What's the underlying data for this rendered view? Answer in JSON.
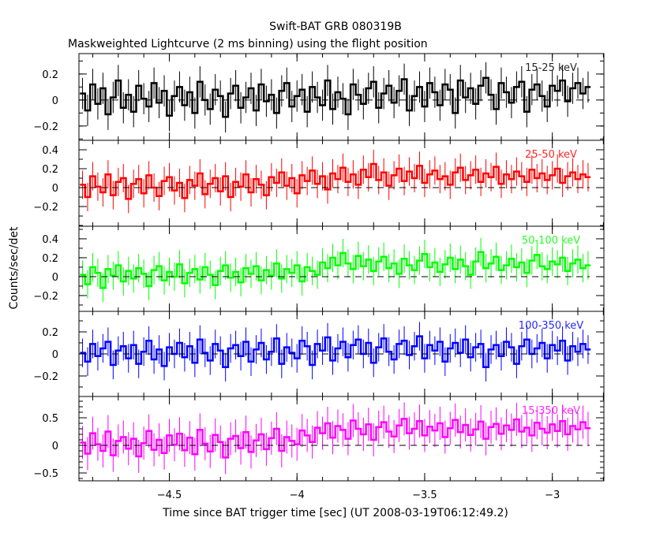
{
  "chart_data": {
    "type": "line",
    "title": "Swift-BAT GRB 080319B",
    "subtitle": "Maskweighted Lightcurve (2 ms binning) using the flight position",
    "xlabel": "Time since BAT trigger time [sec] (UT 2008-03-19T06:12:49.2)",
    "ylabel": "Counts/sec/det",
    "xlim": [
      -4.854,
      -2.798
    ],
    "x_start": -4.85,
    "x_step": 0.02,
    "x_ticks": [
      -4.5,
      -4,
      -3.5,
      -3
    ],
    "x_tick_labels": [
      "-4.5",
      "-4",
      "-3.5",
      "-3"
    ],
    "grid": false,
    "panels": [
      {
        "name": "15-25 keV",
        "color": "#000000",
        "err": 0.12,
        "ylim": [
          -0.31,
          0.357
        ],
        "y_ticks": [
          0.2,
          0,
          -0.2
        ],
        "y_tick_labels": [
          "0.2",
          "0",
          "−0.2"
        ],
        "values": [
          0.05,
          -0.08,
          0.12,
          -0.03,
          0.09,
          -0.11,
          0.02,
          0.15,
          -0.06,
          0.04,
          -0.09,
          0.11,
          0.01,
          -0.05,
          0.13,
          -0.02,
          0.07,
          -0.12,
          0.03,
          0.1,
          -0.04,
          0.06,
          -0.1,
          0.14,
          0.0,
          -0.07,
          0.08,
          0.03,
          -0.13,
          0.05,
          0.11,
          -0.06,
          0.02,
          0.09,
          -0.08,
          0.12,
          -0.01,
          0.04,
          -0.1,
          0.07,
          0.13,
          -0.05,
          0.03,
          0.08,
          -0.09,
          0.1,
          0.02,
          -0.04,
          0.15,
          -0.07,
          0.06,
          0.01,
          -0.11,
          0.12,
          0.04,
          -0.03,
          0.09,
          0.14,
          -0.06,
          0.05,
          0.11,
          -0.02,
          0.07,
          0.16,
          -0.08,
          0.03,
          0.1,
          -0.05,
          0.13,
          0.06,
          -0.04,
          0.12,
          0.08,
          -0.1,
          0.15,
          0.02,
          0.09,
          -0.03,
          0.11,
          0.17,
          0.04,
          -0.07,
          0.13,
          0.06,
          -0.02,
          0.1,
          0.14,
          -0.09,
          0.08,
          0.12,
          0.03,
          -0.05,
          0.11,
          0.07,
          0.15,
          -0.01,
          0.09,
          0.13,
          0.05,
          0.1
        ]
      },
      {
        "name": "25-50 keV",
        "color": "#ff0000",
        "err": 0.15,
        "ylim": [
          -0.408,
          0.5
        ],
        "y_ticks": [
          0.4,
          0.2,
          0,
          -0.2
        ],
        "y_tick_labels": [
          "0.4",
          "0.2",
          "0",
          "−0.2"
        ],
        "values": [
          0.03,
          -0.1,
          0.12,
          0.01,
          -0.05,
          0.14,
          -0.08,
          0.06,
          0.1,
          -0.12,
          0.04,
          0.09,
          -0.06,
          0.13,
          0.0,
          -0.09,
          0.07,
          0.11,
          -0.03,
          0.05,
          -0.11,
          0.08,
          0.02,
          0.15,
          -0.07,
          0.04,
          0.1,
          -0.04,
          0.12,
          -0.1,
          0.06,
          0.01,
          0.14,
          -0.05,
          0.09,
          0.03,
          -0.08,
          0.11,
          0.05,
          0.16,
          0.02,
          0.1,
          -0.06,
          0.13,
          0.07,
          0.18,
          0.04,
          0.12,
          -0.02,
          0.15,
          0.09,
          0.21,
          0.06,
          0.14,
          0.03,
          0.19,
          0.11,
          0.25,
          0.08,
          0.16,
          0.02,
          0.13,
          0.2,
          0.07,
          0.17,
          0.1,
          0.23,
          0.05,
          0.14,
          0.18,
          0.09,
          0.12,
          0.03,
          0.16,
          0.21,
          0.08,
          0.13,
          0.19,
          0.06,
          0.15,
          0.11,
          0.22,
          0.04,
          0.14,
          0.09,
          0.17,
          0.12,
          0.06,
          0.19,
          0.1,
          0.15,
          0.08,
          0.13,
          0.2,
          0.05,
          0.12,
          0.16,
          0.09,
          0.14,
          0.11
        ]
      },
      {
        "name": "50-100 keV",
        "color": "#00ff00",
        "err": 0.15,
        "ylim": [
          -0.367,
          0.533
        ],
        "y_ticks": [
          0.4,
          0.2,
          0,
          -0.2
        ],
        "y_tick_labels": [
          "0.4",
          "0.2",
          "0",
          "−0.2"
        ],
        "values": [
          0.02,
          -0.08,
          0.1,
          0.04,
          -0.12,
          0.08,
          0.01,
          0.12,
          -0.05,
          0.06,
          -0.02,
          0.09,
          0.03,
          -0.1,
          0.07,
          0.11,
          -0.04,
          0.05,
          0.0,
          0.13,
          -0.07,
          0.04,
          0.08,
          -0.03,
          0.1,
          0.02,
          -0.09,
          0.06,
          0.12,
          -0.01,
          0.05,
          -0.06,
          0.09,
          0.03,
          0.11,
          -0.04,
          0.07,
          0.01,
          0.14,
          -0.02,
          0.08,
          0.04,
          0.12,
          -0.05,
          0.1,
          0.06,
          0.02,
          0.15,
          0.09,
          0.2,
          0.12,
          0.25,
          0.14,
          0.08,
          0.22,
          0.11,
          0.18,
          0.06,
          0.16,
          0.21,
          0.09,
          0.14,
          0.03,
          0.19,
          0.12,
          0.07,
          0.17,
          0.24,
          0.1,
          0.15,
          0.05,
          0.13,
          0.2,
          0.08,
          0.18,
          0.11,
          0.02,
          0.16,
          0.26,
          0.09,
          0.14,
          0.21,
          0.07,
          0.12,
          0.19,
          0.1,
          0.15,
          0.04,
          0.17,
          0.23,
          0.11,
          0.08,
          0.16,
          0.13,
          0.2,
          0.06,
          0.14,
          0.18,
          0.09,
          0.12
        ]
      },
      {
        "name": "100-350 keV",
        "color": "#0000ff",
        "err": 0.13,
        "ylim": [
          -0.386,
          0.386
        ],
        "y_ticks": [
          0.2,
          0,
          -0.2
        ],
        "y_tick_labels": [
          "0.2",
          "0",
          "−0.2"
        ],
        "values": [
          0.01,
          -0.07,
          0.09,
          -0.02,
          0.05,
          0.11,
          -0.1,
          0.03,
          0.07,
          -0.04,
          0.08,
          -0.09,
          0.02,
          0.12,
          -0.05,
          0.04,
          -0.11,
          0.06,
          0.0,
          0.1,
          -0.03,
          0.07,
          -0.08,
          0.13,
          0.01,
          -0.06,
          0.09,
          0.03,
          -0.12,
          0.05,
          0.08,
          -0.02,
          0.11,
          -0.07,
          0.04,
          0.1,
          -0.05,
          0.02,
          0.14,
          -0.09,
          0.06,
          0.01,
          -0.04,
          0.12,
          0.07,
          -0.1,
          0.09,
          0.03,
          0.15,
          -0.06,
          0.05,
          0.11,
          -0.03,
          0.08,
          0.13,
          0.0,
          0.1,
          -0.08,
          0.06,
          0.14,
          0.02,
          -0.05,
          0.09,
          0.12,
          -0.01,
          0.07,
          0.16,
          -0.04,
          0.08,
          0.03,
          0.11,
          -0.07,
          0.05,
          0.1,
          0.01,
          0.13,
          -0.03,
          0.06,
          0.09,
          -0.12,
          0.04,
          0.08,
          -0.02,
          0.11,
          0.06,
          -0.09,
          0.07,
          0.13,
          0.0,
          0.05,
          0.1,
          -0.04,
          0.08,
          0.03,
          0.12,
          -0.06,
          0.07,
          0.02,
          0.09,
          0.04
        ]
      },
      {
        "name": "15-350 keV",
        "color": "#ff00ff",
        "err": 0.3,
        "ylim": [
          -0.643,
          0.886
        ],
        "y_ticks": [
          0.5,
          0,
          -0.5
        ],
        "y_tick_labels": [
          "0.5",
          "0",
          "−0.5"
        ],
        "values": [
          0.05,
          -0.15,
          0.22,
          0.02,
          -0.1,
          0.25,
          -0.18,
          0.08,
          0.15,
          -0.06,
          0.12,
          -0.2,
          0.04,
          0.26,
          -0.08,
          0.1,
          -0.14,
          0.18,
          0.01,
          0.21,
          -0.09,
          0.14,
          -0.16,
          0.28,
          0.03,
          -0.11,
          0.19,
          0.06,
          -0.22,
          0.12,
          0.17,
          -0.05,
          0.24,
          -0.12,
          0.09,
          0.2,
          -0.07,
          0.13,
          0.3,
          -0.1,
          0.15,
          0.08,
          0.02,
          0.27,
          0.18,
          0.06,
          0.32,
          0.22,
          0.4,
          0.14,
          0.35,
          0.28,
          0.12,
          0.45,
          0.3,
          0.2,
          0.38,
          0.1,
          0.33,
          0.42,
          0.25,
          0.16,
          0.36,
          0.48,
          0.22,
          0.3,
          0.44,
          0.18,
          0.34,
          0.27,
          0.4,
          0.15,
          0.31,
          0.46,
          0.24,
          0.37,
          0.19,
          0.29,
          0.43,
          0.12,
          0.33,
          0.39,
          0.21,
          0.36,
          0.28,
          0.47,
          0.25,
          0.32,
          0.18,
          0.41,
          0.3,
          0.23,
          0.38,
          0.26,
          0.44,
          0.2,
          0.35,
          0.29,
          0.42,
          0.31
        ]
      }
    ]
  }
}
